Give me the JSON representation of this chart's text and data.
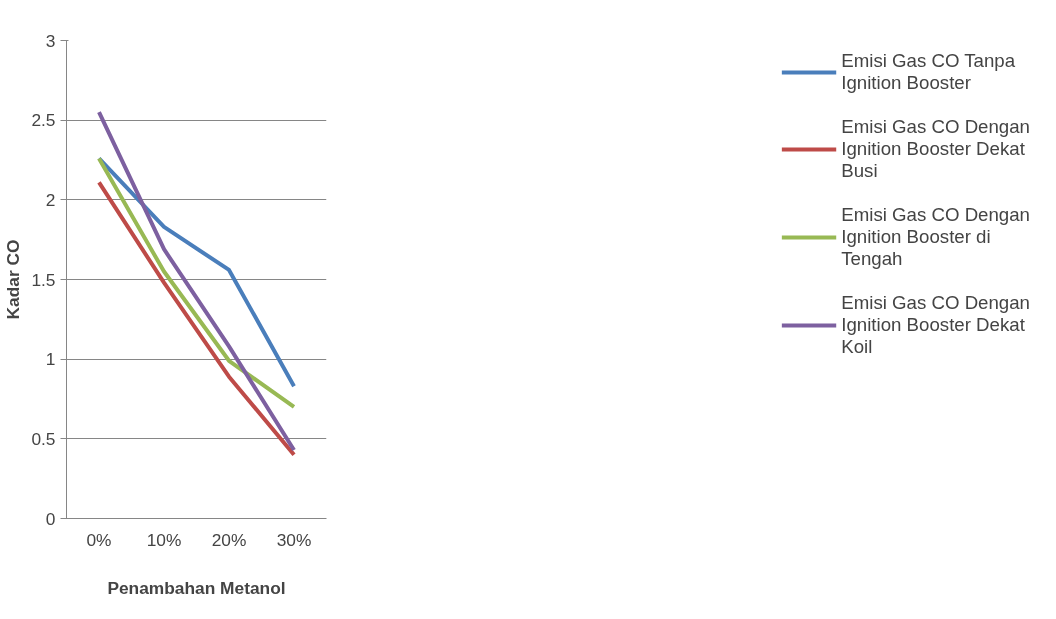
{
  "chart_data": {
    "type": "line",
    "xlabel": "Penambahan Metanol",
    "ylabel": "Kadar CO",
    "categories": [
      "0%",
      "10%",
      "20%",
      "30%"
    ],
    "series": [
      {
        "name": "Emisi Gas CO Tanpa Ignition Booster",
        "color": "#4a7ebb",
        "values": [
          2.26,
          1.83,
          1.56,
          0.83
        ]
      },
      {
        "name": "Emisi Gas CO Dengan Ignition Booster Dekat Busi",
        "color": "#be4b48",
        "values": [
          2.11,
          1.48,
          0.89,
          0.4
        ]
      },
      {
        "name": "Emisi Gas CO Dengan Ignition Booster di Tengah",
        "color": "#98b954",
        "values": [
          2.26,
          1.55,
          0.99,
          0.7
        ]
      },
      {
        "name": "Emisi Gas CO Dengan Ignition Booster Dekat Koil",
        "color": "#7d60a0",
        "values": [
          2.55,
          1.69,
          1.08,
          0.43
        ]
      }
    ],
    "ylim": [
      0,
      3
    ],
    "yticks": [
      0,
      0.5,
      1,
      1.5,
      2,
      2.5,
      3
    ],
    "grid": "y",
    "legend": "right",
    "marker": "none",
    "line_style": "solid"
  }
}
